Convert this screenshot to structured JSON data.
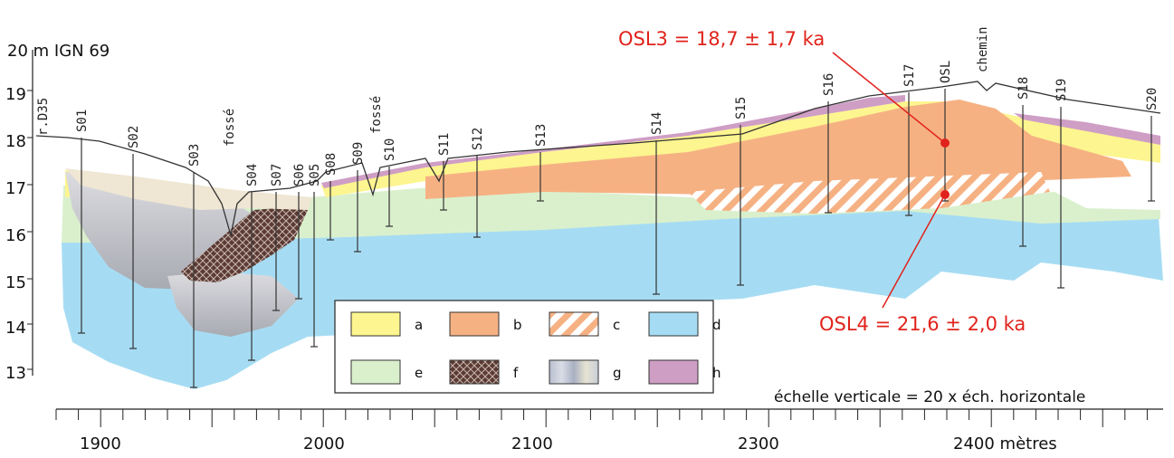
{
  "header": {
    "datum_label": "20 m IGN 69"
  },
  "elevation_ticks": [
    "20",
    "19",
    "18",
    "17",
    "16",
    "15",
    "14",
    "13"
  ],
  "scale_labels": [
    "1900",
    "2000",
    "2100",
    "2300",
    "2400 mètres"
  ],
  "scale_note": "échelle verticale = 20 x éch. horizontale",
  "features": {
    "road": "r.D35",
    "ditch_1": "fossé",
    "ditch_2": "fossé",
    "path": "chemin"
  },
  "boreholes": [
    "S01",
    "S02",
    "S03",
    "S04",
    "S07",
    "S06",
    "S05",
    "S08",
    "S09",
    "S10",
    "S11",
    "S12",
    "S13",
    "S14",
    "S15",
    "S16",
    "S17",
    "OSL",
    "S18",
    "S19",
    "S20"
  ],
  "osl_dates": {
    "osl3": "OSL3 = 18,7 ± 1,7 ka",
    "osl4": "OSL4 = 21,6 ± 2,0 ka",
    "marker_color": "#e0231c"
  },
  "legend": [
    {
      "key": "a",
      "color": "#fdf58f",
      "pattern": "solid"
    },
    {
      "key": "b",
      "color": "#f6b183",
      "pattern": "solid"
    },
    {
      "key": "c",
      "color": "#f6b183",
      "pattern": "hatch"
    },
    {
      "key": "d",
      "color": "#a6dcf3",
      "pattern": "solid"
    },
    {
      "key": "e",
      "color": "#daf0cd",
      "pattern": "solid"
    },
    {
      "key": "f",
      "color": "#5b3b34",
      "pattern": "crosshatch"
    },
    {
      "key": "g",
      "color": "#c3c8d4",
      "pattern": "bands"
    },
    {
      "key": "h",
      "color": "#cf9ec5",
      "pattern": "solid"
    }
  ]
}
